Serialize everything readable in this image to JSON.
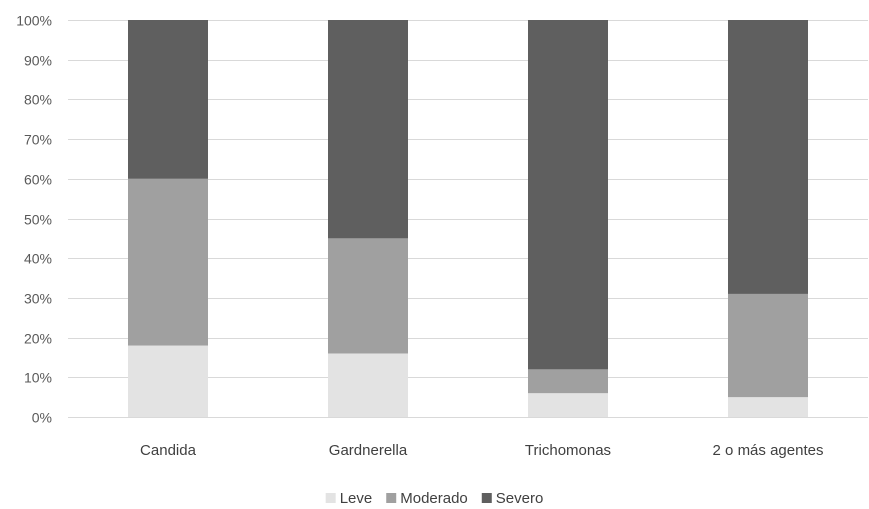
{
  "chart_data": {
    "type": "bar",
    "stacked": true,
    "categories": [
      "Candida",
      "Gardnerella",
      "Trichomonas",
      "2 o más agentes"
    ],
    "series": [
      {
        "name": "Leve",
        "values": [
          18,
          16,
          6,
          5
        ],
        "color": "#e3e3e3"
      },
      {
        "name": "Moderado",
        "values": [
          42,
          29,
          6,
          26
        ],
        "color": "#a0a0a0"
      },
      {
        "name": "Severo",
        "values": [
          40,
          55,
          88,
          69
        ],
        "color": "#5f5f5f"
      }
    ],
    "y_ticks": [
      "0%",
      "10%",
      "20%",
      "30%",
      "40%",
      "50%",
      "60%",
      "70%",
      "80%",
      "90%",
      "100%"
    ],
    "ylim": [
      0,
      100
    ],
    "y_unit": "%",
    "grid": true,
    "legend_position": "bottom"
  }
}
